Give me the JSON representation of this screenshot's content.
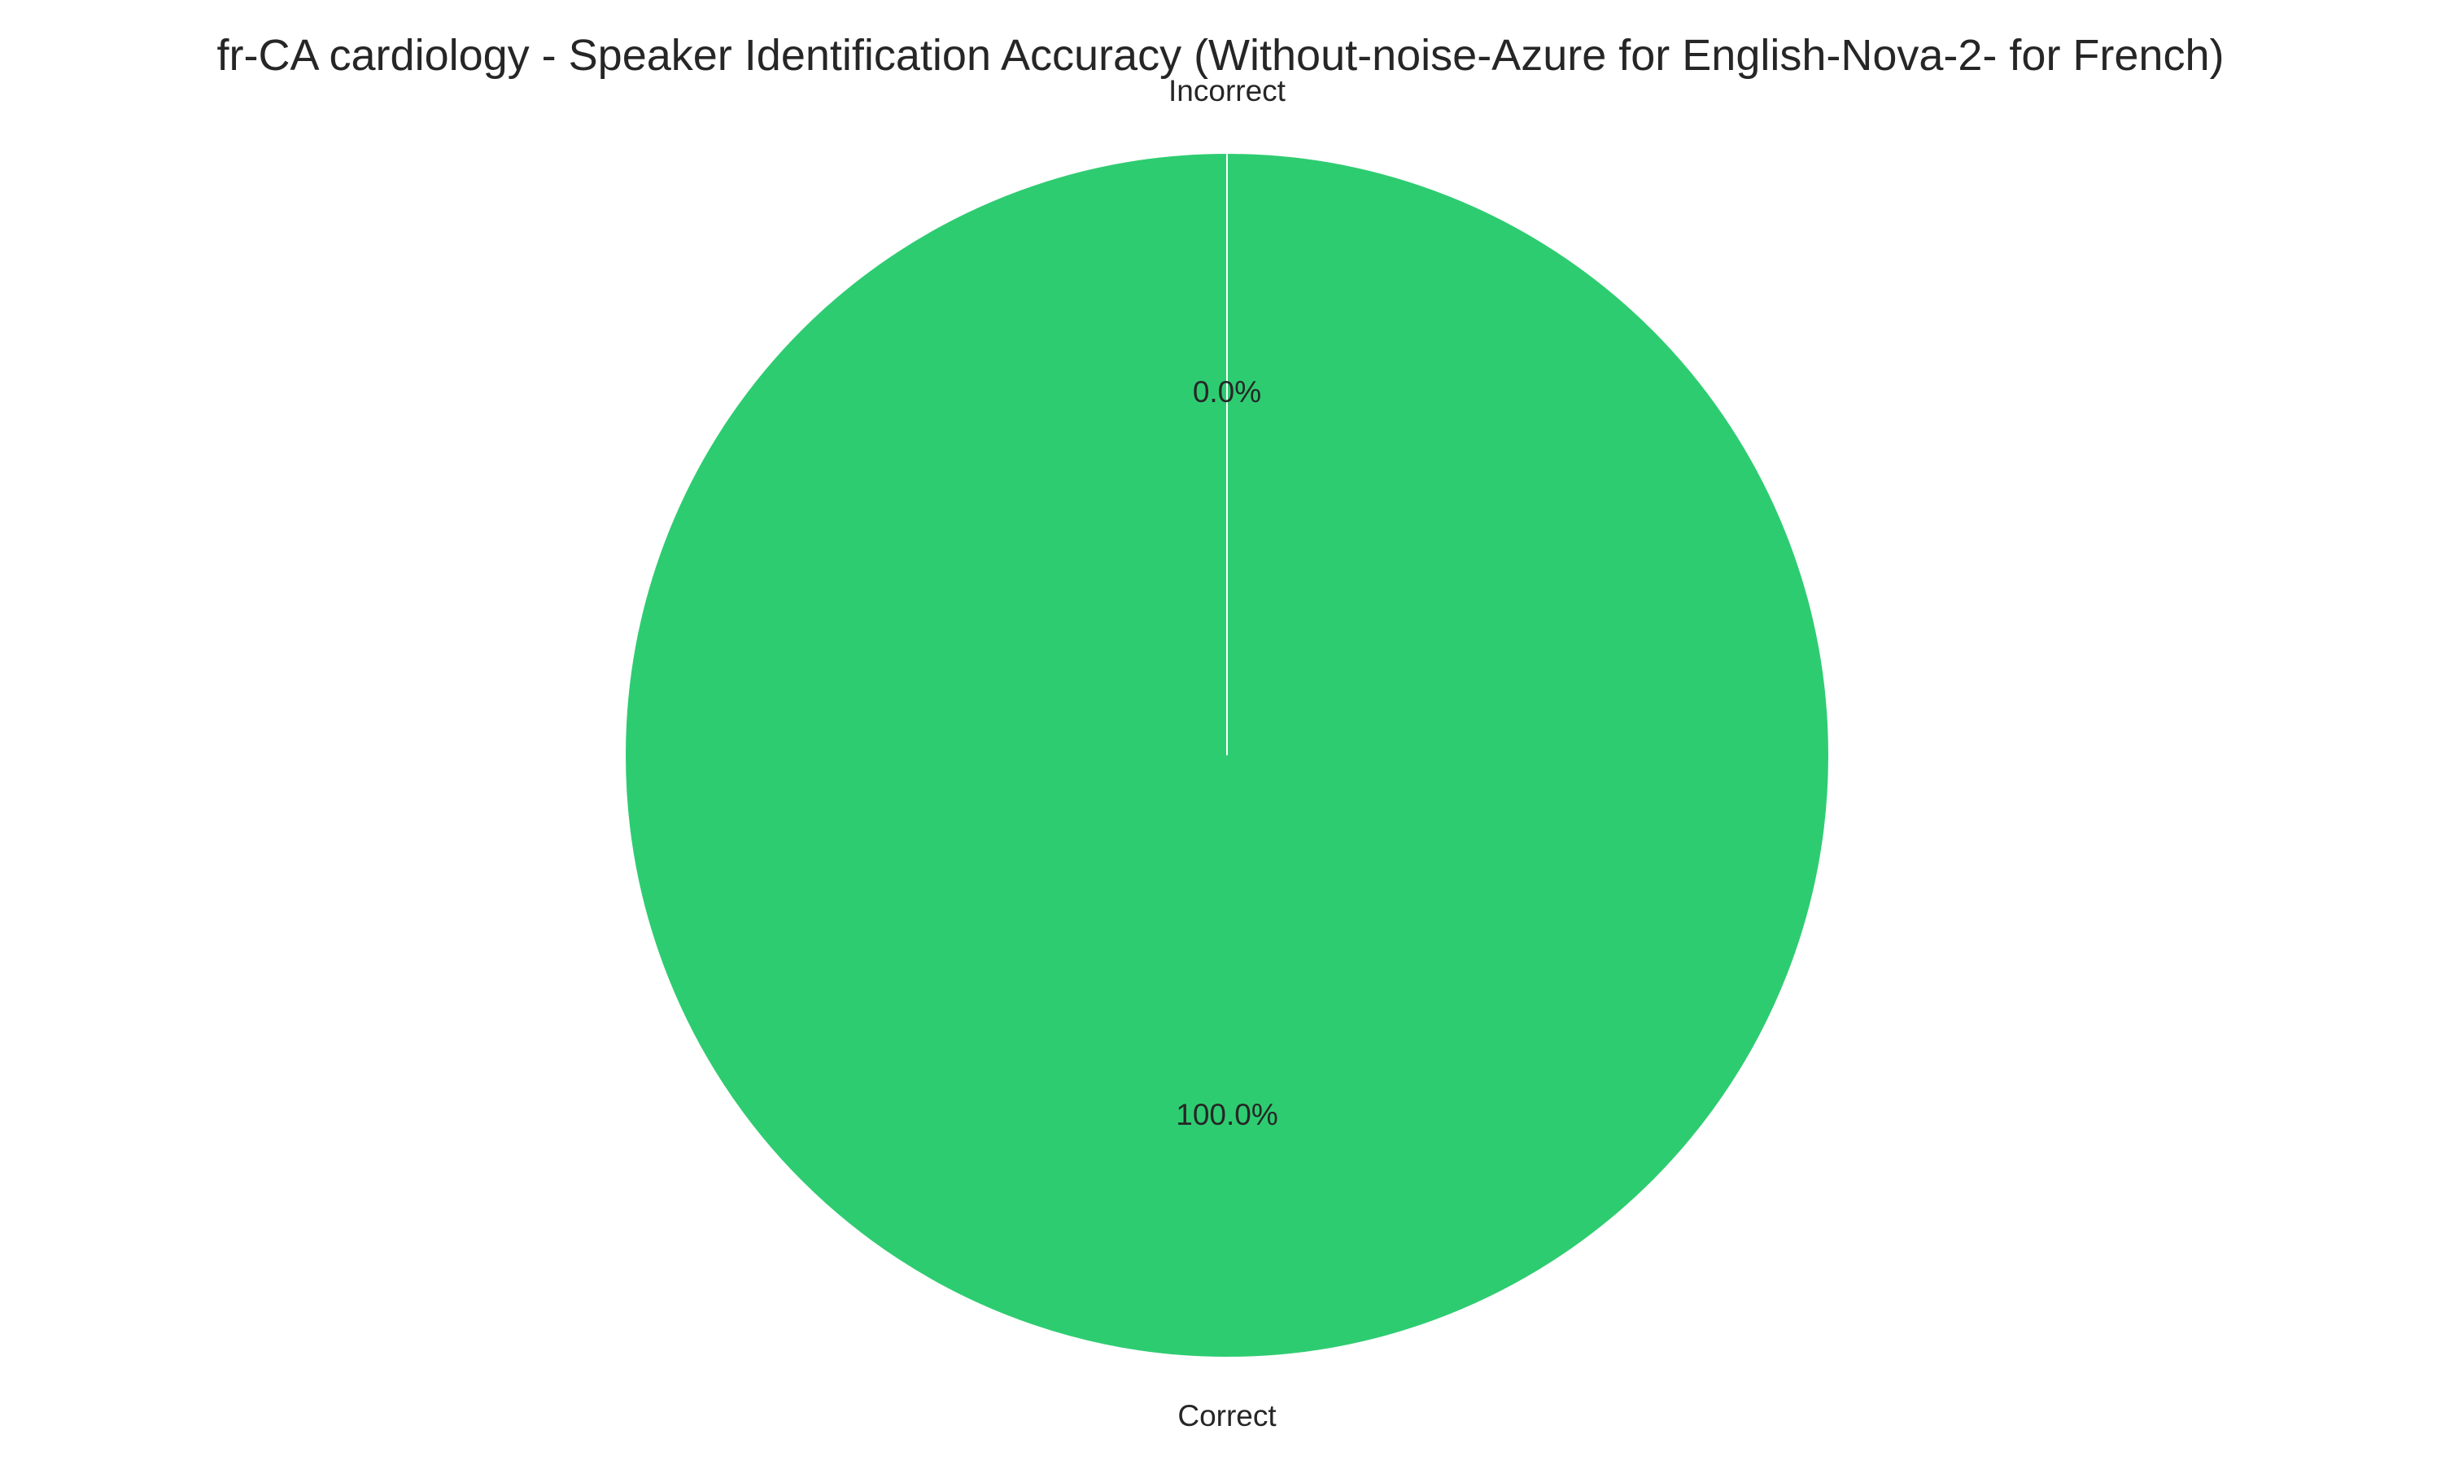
{
  "chart_data": {
    "type": "pie",
    "title": "fr-CA cardiology - Speaker Identification Accuracy (Without-noise-Azure for English-Nova-2- for French)",
    "slices": [
      {
        "label": "Correct",
        "value": 100.0,
        "pct_label": "100.0%",
        "color": "#2ecc71"
      },
      {
        "label": "Incorrect",
        "value": 0.0,
        "pct_label": "0.0%",
        "color": "#e74c3c"
      }
    ],
    "start_angle_deg": 90,
    "direction": "counterclockwise",
    "edge_color": "#ffffff"
  }
}
